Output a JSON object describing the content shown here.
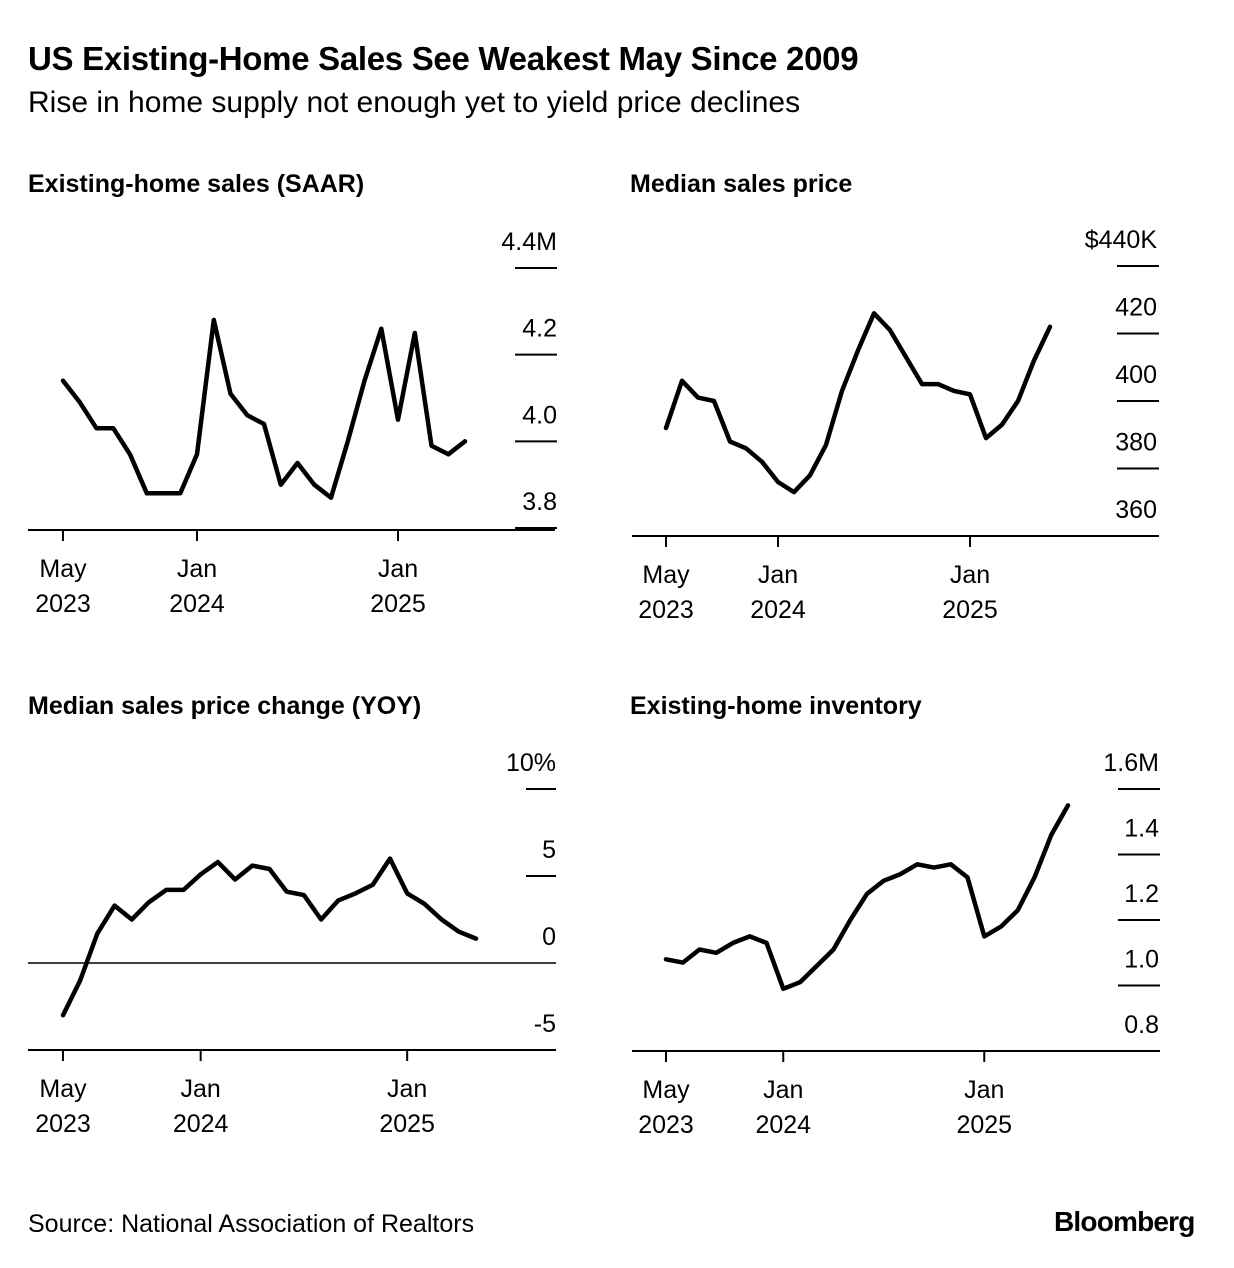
{
  "header": {
    "title": "US Existing-Home Sales See Weakest May Since 2009",
    "subtitle": "Rise in home supply not enough yet to yield price declines"
  },
  "footer": {
    "source": "Source: National Association of Realtors",
    "brand": "Bloomberg"
  },
  "colors": {
    "line": "#000000",
    "background": "#ffffff"
  },
  "chart_data": [
    {
      "id": "sales",
      "type": "line",
      "title": "Existing-home sales (SAAR)",
      "unit": "millions",
      "x_labels": [
        "May\n2023",
        "Jan\n2024",
        "Jan\n2025"
      ],
      "x_label_index": [
        0,
        8,
        20
      ],
      "ylim": [
        3.8,
        4.4
      ],
      "y_ticks": [
        "3.8",
        "4.0",
        "4.2",
        "4.4M"
      ],
      "values": [
        4.14,
        4.09,
        4.03,
        4.03,
        3.97,
        3.88,
        3.88,
        3.88,
        3.97,
        4.28,
        4.11,
        4.06,
        4.04,
        3.9,
        3.95,
        3.9,
        3.87,
        4.0,
        4.14,
        4.26,
        4.05,
        4.25,
        3.99,
        3.97,
        4.0
      ]
    },
    {
      "id": "price",
      "type": "line",
      "title": "Median sales price",
      "unit": "thousand dollars",
      "x_labels": [
        "May\n2023",
        "Jan\n2024",
        "Jan\n2025"
      ],
      "x_label_index": [
        0,
        7,
        19
      ],
      "ylim": [
        360,
        440
      ],
      "y_ticks": [
        "360",
        "380",
        "400",
        "420",
        "$440K"
      ],
      "values": [
        392,
        406,
        401,
        400,
        388,
        386,
        382,
        376,
        373,
        378,
        387,
        403,
        415,
        426,
        421,
        413,
        405,
        405,
        403,
        402,
        389,
        393,
        400,
        412,
        422
      ]
    },
    {
      "id": "yoy",
      "type": "line",
      "title": "Median sales price change (YOY)",
      "unit": "percent",
      "x_labels": [
        "May\n2023",
        "Jan\n2024",
        "Jan\n2025"
      ],
      "x_label_index": [
        0,
        8,
        20
      ],
      "ylim": [
        -5,
        10
      ],
      "y_ticks": [
        "-5",
        "0",
        "5",
        "10%"
      ],
      "values": [
        -3.0,
        -1.0,
        1.7,
        3.3,
        2.5,
        3.5,
        4.2,
        4.2,
        5.1,
        5.8,
        4.8,
        5.6,
        5.4,
        4.1,
        3.9,
        2.5,
        3.6,
        4.0,
        4.5,
        6.0,
        4.0,
        3.4,
        2.5,
        1.8,
        1.4
      ]
    },
    {
      "id": "inventory",
      "type": "line",
      "title": "Existing-home inventory",
      "unit": "millions",
      "x_labels": [
        "May\n2023",
        "Jan\n2024",
        "Jan\n2025"
      ],
      "x_label_index": [
        0,
        7,
        19
      ],
      "ylim": [
        0.8,
        1.6
      ],
      "y_ticks": [
        "0.8",
        "1.0",
        "1.2",
        "1.4",
        "1.6M"
      ],
      "values": [
        1.08,
        1.07,
        1.11,
        1.1,
        1.13,
        1.15,
        1.13,
        0.99,
        1.01,
        1.06,
        1.11,
        1.2,
        1.28,
        1.32,
        1.34,
        1.37,
        1.36,
        1.37,
        1.33,
        1.15,
        1.18,
        1.23,
        1.33,
        1.46,
        1.55
      ]
    }
  ]
}
